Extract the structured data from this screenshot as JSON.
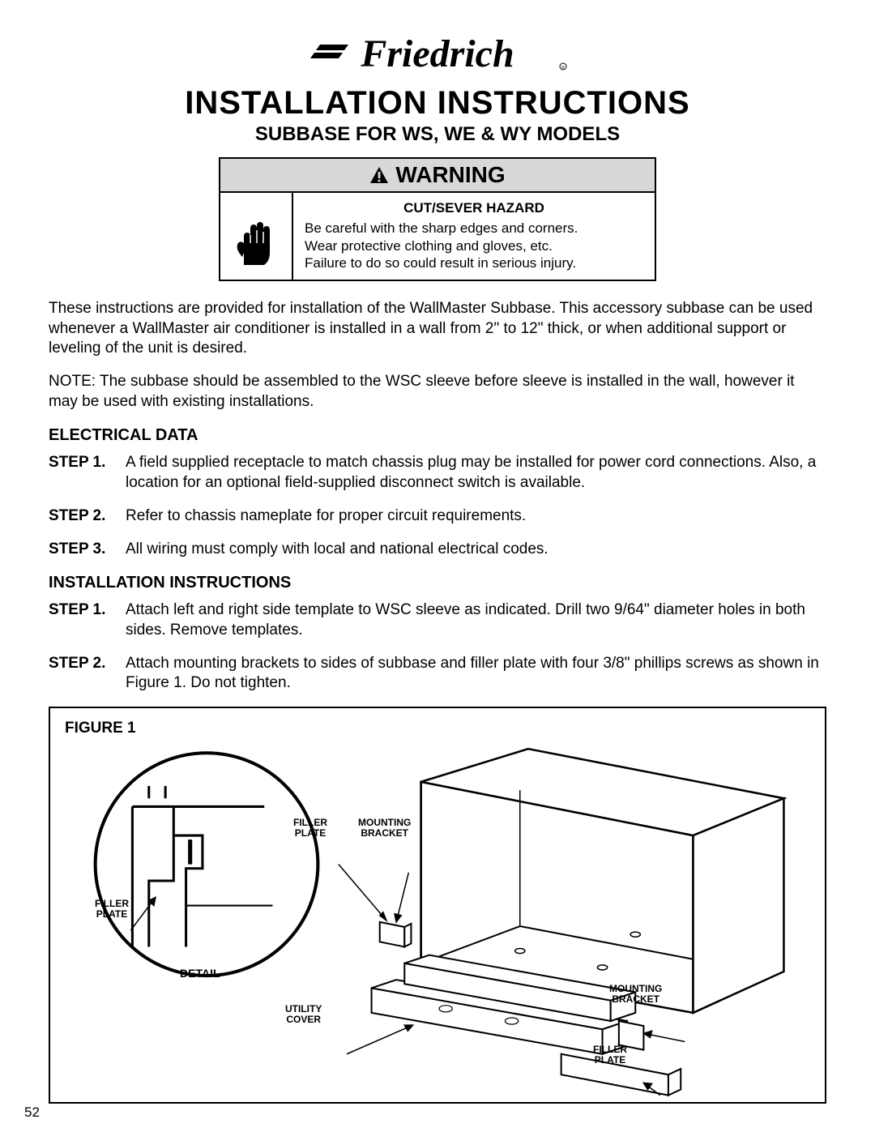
{
  "brand": "Friedrich",
  "main_title": "INSTALLATION INSTRUCTIONS",
  "sub_title": "SUBBASE FOR WS, WE & WY MODELS",
  "warning": {
    "header": "WARNING",
    "hazard_title": "CUT/SEVER HAZARD",
    "line1": "Be careful with the sharp edges and corners.",
    "line2": "Wear protective clothing and gloves, etc.",
    "line3": "Failure to do so could result in serious injury."
  },
  "intro_p1": "These instructions are provided for installation of the WallMaster Subbase. This accessory subbase can be used whenever a WallMaster air conditioner is installed in a wall from 2\" to 12\" thick, or when additional support or leveling of the unit is desired.",
  "intro_p2": "NOTE:  The subbase should be assembled to the WSC sleeve before sleeve is installed in the wall, however it may be used with existing installations.",
  "electrical": {
    "heading": "ELECTRICAL DATA",
    "steps": [
      {
        "label": "STEP 1.",
        "text": "A field supplied receptacle to match chassis plug may be installed for power cord connections. Also, a location for an optional field-supplied disconnect switch is available."
      },
      {
        "label": "STEP 2.",
        "text": "Refer to chassis nameplate for proper circuit requirements."
      },
      {
        "label": "STEP 3.",
        "text": "All wiring must comply with local and national electrical codes."
      }
    ]
  },
  "install": {
    "heading": "INSTALLATION INSTRUCTIONS",
    "steps": [
      {
        "label": "STEP 1.",
        "text": "Attach left and right side template to WSC sleeve as indicated.  Drill two 9/64\" diameter holes in both sides. Remove templates."
      },
      {
        "label": "STEP 2.",
        "text": "Attach mounting brackets to sides of subbase and filler plate with four 3/8\" phillips screws as shown in Figure 1. Do not tighten."
      }
    ]
  },
  "figure": {
    "title": "FIGURE 1",
    "labels": {
      "filler_plate_top": "FILLER\nPLATE",
      "mounting_bracket_top": "MOUNTING\nBRACKET",
      "filler_plate_left": "FILLER\nPLATE",
      "detail": "DETAIL",
      "utility_cover": "UTILITY\nCOVER",
      "mounting_bracket_right": "MOUNTING\nBRACKET",
      "filler_plate_right": "FILLER\nPLATE"
    }
  },
  "page_number": "52"
}
